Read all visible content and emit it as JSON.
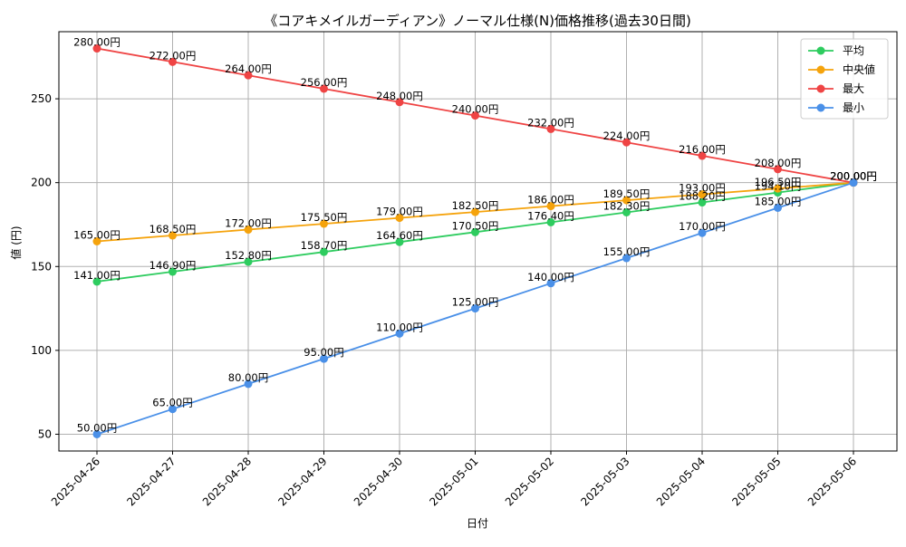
{
  "chart_data": {
    "type": "line",
    "title": "《コアキメイルガーディアン》ノーマル仕様(N)価格推移(過去30日間)",
    "xlabel": "日付",
    "ylabel": "値 (円)",
    "categories": [
      "2025-04-26",
      "2025-04-27",
      "2025-04-28",
      "2025-04-29",
      "2025-04-30",
      "2025-05-01",
      "2025-05-02",
      "2025-05-03",
      "2025-05-04",
      "2025-05-05",
      "2025-05-06"
    ],
    "ylim": [
      40,
      290
    ],
    "yticks": [
      "50",
      "100",
      "150",
      "200",
      "250"
    ],
    "grid": true,
    "legend_position": "top-right",
    "value_suffix": "円",
    "series": [
      {
        "name": "平均",
        "color": "#2ecc5f",
        "values": [
          141.0,
          146.9,
          152.8,
          158.7,
          164.6,
          170.5,
          176.4,
          182.3,
          188.2,
          194.1,
          200.0
        ],
        "labels": [
          "141.00円",
          "146.90円",
          "152.80円",
          "158.70円",
          "164.60円",
          "170.50円",
          "176.40円",
          "182.30円",
          "188.20円",
          "194.10円",
          "200.00円"
        ]
      },
      {
        "name": "中央値",
        "color": "#f5a30c",
        "values": [
          165.0,
          168.5,
          172.0,
          175.5,
          179.0,
          182.5,
          186.0,
          189.5,
          193.0,
          196.5,
          200.0
        ],
        "labels": [
          "165.00円",
          "168.50円",
          "172.00円",
          "175.50円",
          "179.00円",
          "182.50円",
          "186.00円",
          "189.50円",
          "193.00円",
          "196.50円",
          "200.00円"
        ]
      },
      {
        "name": "最大",
        "color": "#ef4444",
        "values": [
          280,
          272,
          264,
          256,
          248,
          240,
          232,
          224,
          216,
          208,
          200
        ],
        "labels": [
          "280.00円",
          "272.00円",
          "264.00円",
          "256.00円",
          "248.00円",
          "240.00円",
          "232.00円",
          "224.00円",
          "216.00円",
          "208.00円",
          "200.00円"
        ]
      },
      {
        "name": "最小",
        "color": "#4a90e8",
        "values": [
          50,
          65,
          80,
          95,
          110,
          125,
          140,
          155,
          170,
          185,
          200
        ],
        "labels": [
          "50.00円",
          "65.00円",
          "80.00円",
          "95.00円",
          "110.00円",
          "125.00円",
          "140.00円",
          "155.00円",
          "170.00円",
          "185.00円",
          "200.00円"
        ]
      }
    ]
  }
}
